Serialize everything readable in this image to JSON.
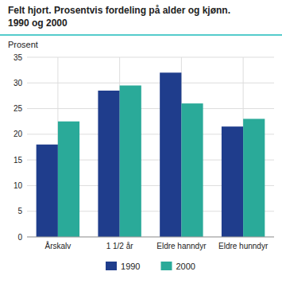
{
  "chart_data": {
    "type": "bar",
    "title": "Felt hjort. Prosentvis fordeling på alder og kjønn.",
    "subtitle": "1990 og 2000",
    "ylabel": "Prosent",
    "categories": [
      "Årskalv",
      "1 1/2 år",
      "Eldre hanndyr",
      "Eldre hunndyr"
    ],
    "series": [
      {
        "name": "1990",
        "color": "#1f3d8c",
        "values": [
          18.0,
          28.5,
          32.0,
          21.5
        ]
      },
      {
        "name": "2000",
        "color": "#2aaa99",
        "values": [
          22.5,
          29.5,
          26.0,
          23.0
        ]
      }
    ],
    "ylim": [
      0,
      35
    ],
    "yticks": [
      0,
      5,
      10,
      15,
      20,
      25,
      30,
      35
    ],
    "grid": true,
    "legend": "bottom"
  }
}
